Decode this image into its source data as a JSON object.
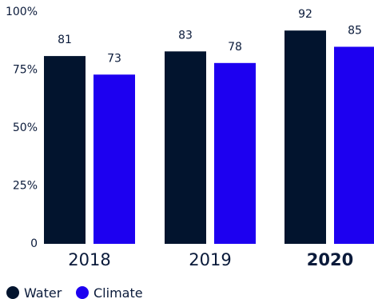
{
  "chart_data": {
    "type": "bar",
    "categories": [
      "2018",
      "2019",
      "2020"
    ],
    "emphasized_category": "2020",
    "series": [
      {
        "name": "Water",
        "color": "#02142e",
        "values": [
          81,
          83,
          92
        ]
      },
      {
        "name": "Climate",
        "color": "#1d00f0",
        "values": [
          73,
          78,
          85
        ]
      }
    ],
    "yticks": [
      {
        "value": 0,
        "label": "0"
      },
      {
        "value": 25,
        "label": "25%"
      },
      {
        "value": 50,
        "label": "50%"
      },
      {
        "value": 75,
        "label": "75%"
      },
      {
        "value": 100,
        "label": "100%"
      }
    ],
    "ylim": [
      0,
      100
    ],
    "grid": false,
    "data_labels": true,
    "legend_placement": "bottom-left",
    "text_color": "#0a1a3a"
  }
}
